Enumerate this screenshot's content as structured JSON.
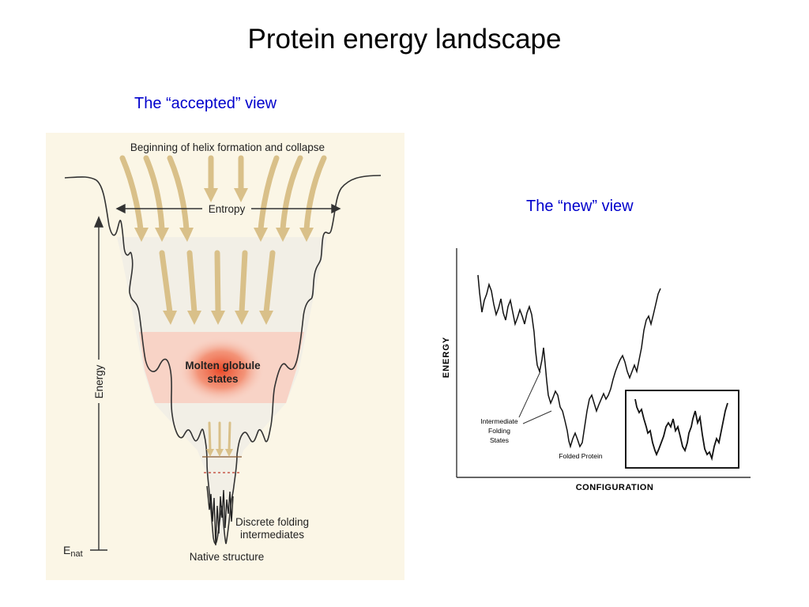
{
  "slide": {
    "title": "Protein energy landscape",
    "accepted_caption": "The “accepted” view",
    "new_caption": "The “new” view"
  },
  "funnel_diagram": {
    "top_label": "Beginning of helix formation and collapse",
    "entropy_label": "Entropy",
    "energy_axis_label": "Energy",
    "enat_label_main": "E",
    "enat_label_sub": "nat",
    "molten_label_line1": "Molten globule",
    "molten_label_line2": "states",
    "discrete_line1": "Discrete folding",
    "discrete_line2": "intermediates",
    "native_label": "Native structure",
    "colors": {
      "background": "#fbf6e6",
      "arrow": "#d9c089",
      "molten_band": "#f8d3c6",
      "molten_glow": "#ee4a2a"
    }
  },
  "landscape_plot": {
    "y_axis_label": "ENERGY",
    "x_axis_label": "CONFIGURATION",
    "intermediate_line1": "Intermediate",
    "intermediate_line2": "Folding",
    "intermediate_line3": "States",
    "folded_label": "Folded Protein"
  }
}
